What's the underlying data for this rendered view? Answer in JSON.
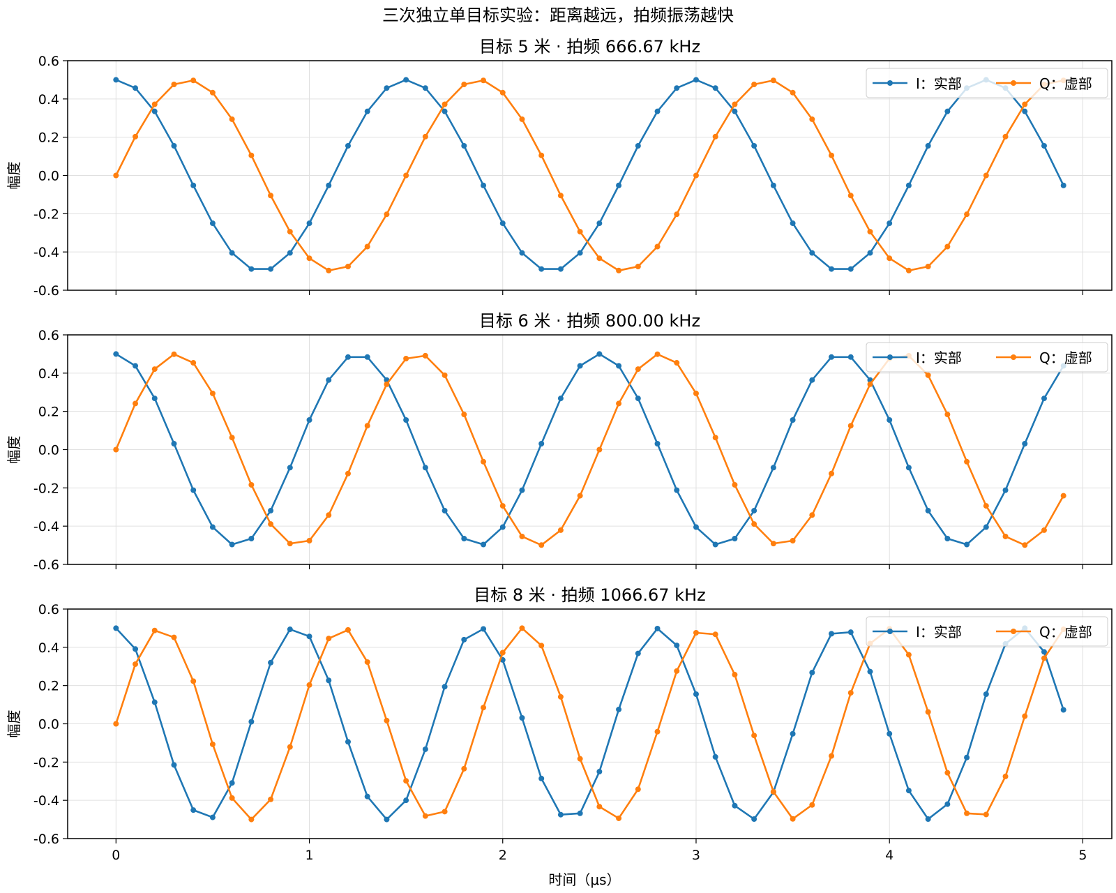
{
  "figure": {
    "suptitle": "三次独立单目标实验：距离越远，拍频振荡越快",
    "xlabel": "时间（μs）",
    "ylabel": "幅度"
  },
  "colors": {
    "I": "#1f77b4",
    "Q": "#ff7f0e",
    "grid": "#e0e0e0",
    "axes": "#000000"
  },
  "chart_data": [
    {
      "type": "line",
      "title": "目标 5 米 · 拍频 666.67 kHz",
      "beat_khz": 666.67,
      "x": [
        0,
        0.1,
        0.2,
        0.3,
        0.4,
        0.5,
        0.6,
        0.7,
        0.8,
        0.9,
        1.0,
        1.1,
        1.2,
        1.3,
        1.4,
        1.5,
        1.6,
        1.7,
        1.8,
        1.9,
        2.0,
        2.1,
        2.2,
        2.3,
        2.4,
        2.5,
        2.6,
        2.7,
        2.8,
        2.9,
        3.0,
        3.1,
        3.2,
        3.3,
        3.4,
        3.5,
        3.6,
        3.7,
        3.8,
        3.9,
        4.0,
        4.1,
        4.2,
        4.3,
        4.4,
        4.5,
        4.6,
        4.7,
        4.8,
        4.9
      ],
      "series": [
        {
          "name": "I：实部",
          "values": [
            0.5,
            0.457,
            0.335,
            0.155,
            -0.052,
            -0.25,
            -0.405,
            -0.489,
            -0.489,
            -0.405,
            -0.25,
            -0.052,
            0.155,
            0.335,
            0.457,
            0.5,
            0.457,
            0.335,
            0.155,
            -0.052,
            -0.25,
            -0.405,
            -0.489,
            -0.489,
            -0.405,
            -0.25,
            -0.052,
            0.155,
            0.335,
            0.457,
            0.5,
            0.457,
            0.335,
            0.155,
            -0.052,
            -0.25,
            -0.405,
            -0.489,
            -0.489,
            -0.405,
            -0.25,
            -0.052,
            0.155,
            0.335,
            0.457,
            0.5,
            0.457,
            0.335,
            0.155,
            -0.052
          ]
        },
        {
          "name": "Q：虚部",
          "values": [
            0.0,
            0.203,
            0.372,
            0.476,
            0.497,
            0.433,
            0.294,
            0.105,
            -0.105,
            -0.294,
            -0.433,
            -0.497,
            -0.476,
            -0.372,
            -0.203,
            0.0,
            0.203,
            0.372,
            0.476,
            0.497,
            0.433,
            0.294,
            0.105,
            -0.105,
            -0.294,
            -0.433,
            -0.497,
            -0.476,
            -0.372,
            -0.203,
            0.0,
            0.203,
            0.372,
            0.476,
            0.497,
            0.433,
            0.294,
            0.105,
            -0.105,
            -0.294,
            -0.433,
            -0.497,
            -0.476,
            -0.372,
            -0.203,
            0.0,
            0.203,
            0.372,
            0.476,
            0.497
          ]
        }
      ],
      "xlim": [
        -0.25,
        5.15
      ],
      "ylim": [
        -0.6,
        0.6
      ],
      "xticks": [
        0,
        1,
        2,
        3,
        4,
        5
      ],
      "yticks": [
        0.6,
        0.4,
        0.2,
        0.0,
        -0.2,
        -0.4,
        -0.6
      ],
      "ytick_labels": [
        "0.6",
        "0.4",
        "0.2",
        "0.0",
        "-0.2",
        "-0.4",
        "-0.6"
      ],
      "xtick_labels": [],
      "grid": true,
      "legend": "top-right"
    },
    {
      "type": "line",
      "title": "目标 6 米 · 拍频 800.00 kHz",
      "beat_khz": 800.0,
      "x": [
        0,
        0.1,
        0.2,
        0.3,
        0.4,
        0.5,
        0.6,
        0.7,
        0.8,
        0.9,
        1.0,
        1.1,
        1.2,
        1.3,
        1.4,
        1.5,
        1.6,
        1.7,
        1.8,
        1.9,
        2.0,
        2.1,
        2.2,
        2.3,
        2.4,
        2.5,
        2.6,
        2.7,
        2.8,
        2.9,
        3.0,
        3.1,
        3.2,
        3.3,
        3.4,
        3.5,
        3.6,
        3.7,
        3.8,
        3.9,
        4.0,
        4.1,
        4.2,
        4.3,
        4.4,
        4.5,
        4.6,
        4.7,
        4.8,
        4.9
      ],
      "series": [
        {
          "name": "I：实部",
          "values": [
            0.5,
            0.438,
            0.268,
            0.031,
            -0.212,
            -0.405,
            -0.496,
            -0.465,
            -0.319,
            -0.094,
            0.155,
            0.364,
            0.484,
            0.484,
            0.364,
            0.155,
            -0.094,
            -0.319,
            -0.465,
            -0.496,
            -0.405,
            -0.212,
            0.031,
            0.268,
            0.438,
            0.5,
            0.438,
            0.268,
            0.031,
            -0.212,
            -0.405,
            -0.496,
            -0.465,
            -0.319,
            -0.094,
            0.155,
            0.364,
            0.484,
            0.484,
            0.364,
            0.155,
            -0.094,
            -0.319,
            -0.465,
            -0.496,
            -0.405,
            -0.212,
            0.031,
            0.268,
            0.438
          ]
        },
        {
          "name": "Q：虚部",
          "values": [
            0.0,
            0.241,
            0.421,
            0.499,
            0.454,
            0.294,
            0.063,
            -0.184,
            -0.389,
            -0.491,
            -0.476,
            -0.342,
            -0.125,
            0.125,
            0.342,
            0.476,
            0.491,
            0.389,
            0.184,
            -0.063,
            -0.294,
            -0.454,
            -0.499,
            -0.421,
            -0.241,
            0.0,
            0.241,
            0.421,
            0.499,
            0.454,
            0.294,
            0.063,
            -0.184,
            -0.389,
            -0.491,
            -0.476,
            -0.342,
            -0.125,
            0.125,
            0.342,
            0.476,
            0.491,
            0.389,
            0.184,
            -0.063,
            -0.294,
            -0.454,
            -0.499,
            -0.421,
            -0.241
          ]
        }
      ],
      "xlim": [
        -0.25,
        5.15
      ],
      "ylim": [
        -0.6,
        0.6
      ],
      "xticks": [
        0,
        1,
        2,
        3,
        4,
        5
      ],
      "yticks": [
        0.6,
        0.4,
        0.2,
        0.0,
        -0.2,
        -0.4,
        -0.6
      ],
      "ytick_labels": [
        "0.6",
        "0.4",
        "0.2",
        "0.0",
        "-0.2",
        "-0.4",
        "-0.6"
      ],
      "xtick_labels": [],
      "grid": true,
      "legend": "top-right"
    },
    {
      "type": "line",
      "title": "目标 8 米 · 拍频 1066.67 kHz",
      "beat_khz": 1066.67,
      "x": [
        0,
        0.1,
        0.2,
        0.3,
        0.4,
        0.5,
        0.6,
        0.7,
        0.8,
        0.9,
        1.0,
        1.1,
        1.2,
        1.3,
        1.4,
        1.5,
        1.6,
        1.7,
        1.8,
        1.9,
        2.0,
        2.1,
        2.2,
        2.3,
        2.4,
        2.5,
        2.6,
        2.7,
        2.8,
        2.9,
        3.0,
        3.1,
        3.2,
        3.3,
        3.4,
        3.5,
        3.6,
        3.7,
        3.8,
        3.9,
        4.0,
        4.1,
        4.2,
        4.3,
        4.4,
        4.5,
        4.6,
        4.7,
        4.8,
        4.9
      ],
      "series": [
        {
          "name": "I：实部",
          "values": [
            0.5,
            0.391,
            0.113,
            -0.215,
            -0.451,
            -0.489,
            -0.309,
            0.011,
            0.32,
            0.494,
            0.457,
            0.227,
            -0.094,
            -0.38,
            -0.5,
            -0.4,
            -0.133,
            0.194,
            0.44,
            0.496,
            0.334,
            0.031,
            -0.286,
            -0.475,
            -0.468,
            -0.25,
            0.075,
            0.368,
            0.498,
            0.41,
            0.155,
            -0.173,
            -0.428,
            -0.498,
            -0.357,
            -0.052,
            0.268,
            0.471,
            0.479,
            0.273,
            -0.052,
            -0.349,
            -0.498,
            -0.42,
            -0.176,
            0.155,
            0.418,
            0.5,
            0.376,
            0.073
          ]
        },
        {
          "name": "Q：虚部",
          "values": [
            0.0,
            0.312,
            0.488,
            0.452,
            0.223,
            -0.107,
            -0.388,
            -0.5,
            -0.395,
            -0.121,
            0.203,
            0.446,
            0.491,
            0.323,
            0.017,
            -0.298,
            -0.482,
            -0.459,
            -0.235,
            0.085,
            0.372,
            0.5,
            0.409,
            0.141,
            -0.183,
            -0.433,
            -0.494,
            -0.342,
            -0.041,
            0.276,
            0.476,
            0.468,
            0.257,
            -0.061,
            -0.355,
            -0.497,
            -0.424,
            -0.168,
            0.162,
            0.42,
            0.497,
            0.361,
            0.062,
            -0.256,
            -0.468,
            -0.474,
            -0.275,
            0.04,
            0.343,
            0.494
          ]
        }
      ],
      "xlim": [
        -0.25,
        5.15
      ],
      "ylim": [
        -0.6,
        0.6
      ],
      "xticks": [
        0,
        1,
        2,
        3,
        4,
        5
      ],
      "yticks": [
        0.6,
        0.4,
        0.2,
        0.0,
        -0.2,
        -0.4,
        -0.6
      ],
      "ytick_labels": [
        "0.6",
        "0.4",
        "0.2",
        "0.0",
        "-0.2",
        "-0.4",
        "-0.6"
      ],
      "xtick_labels": [
        "0",
        "1",
        "2",
        "3",
        "4",
        "5"
      ],
      "grid": true,
      "legend": "top-right"
    }
  ]
}
